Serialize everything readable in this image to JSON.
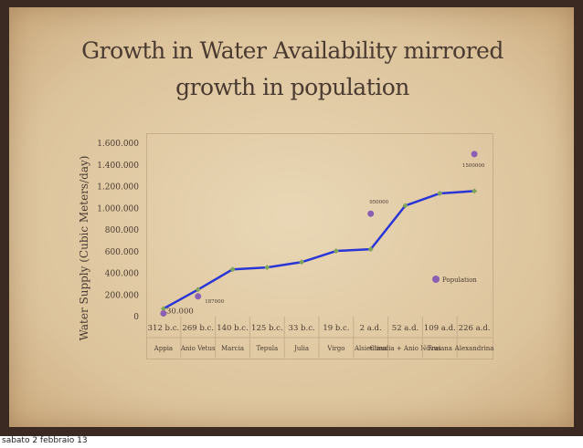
{
  "slide": {
    "title": "Growth in Water Availability mirrored growth in population",
    "footer_date": "sabato 2 febbraio 13"
  },
  "colors": {
    "line": "#2a35d6",
    "marker": "#7fa35a",
    "population_dot": "#8b5fb3",
    "background": "#e3cda9",
    "text": "#4a3a30"
  },
  "chart_data": {
    "type": "line",
    "title": "",
    "xlabel": "",
    "ylabel": "Water Supply (Cubic Meters/day)",
    "ylim": [
      0,
      1600000
    ],
    "yticks": [
      "0",
      "200.000",
      "400.000",
      "600.000",
      "800.000",
      "1.000.000",
      "1.200.000",
      "1.400.000",
      "1.600.000"
    ],
    "categories": [
      "312 b.c.",
      "269 b.c.",
      "140 b.c.",
      "125 b.c.",
      "33 b.c.",
      "19 b.c.",
      "2 a.d.",
      "52 a.d.",
      "109 a.d.",
      "226 a.d."
    ],
    "aqueducts": [
      "Appia",
      "Anio Vetus",
      "Marcia",
      "Tepula",
      "Julia",
      "Virgo",
      "Alsientina",
      "Claudia + Anio Novus",
      "Traiana",
      "Alexandrina"
    ],
    "series": [
      {
        "values": [
          73000,
          249000,
          436000,
          454000,
          503000,
          606000,
          622000,
          1024000,
          1137000,
          1159000
        ]
      },
      {
        "name": "Population",
        "points": [
          {
            "category": "312 b.c.",
            "value": 30000,
            "label": "30.000"
          },
          {
            "category": "269 b.c.",
            "value": 187000,
            "label": "187000"
          },
          {
            "category": "2 a.d.",
            "value": 950000,
            "label": "950000"
          },
          {
            "category": "226 a.d.",
            "value": 1500000,
            "label": "1500000"
          }
        ]
      }
    ],
    "legend": {
      "position": "bottom-right"
    },
    "grid": false
  }
}
